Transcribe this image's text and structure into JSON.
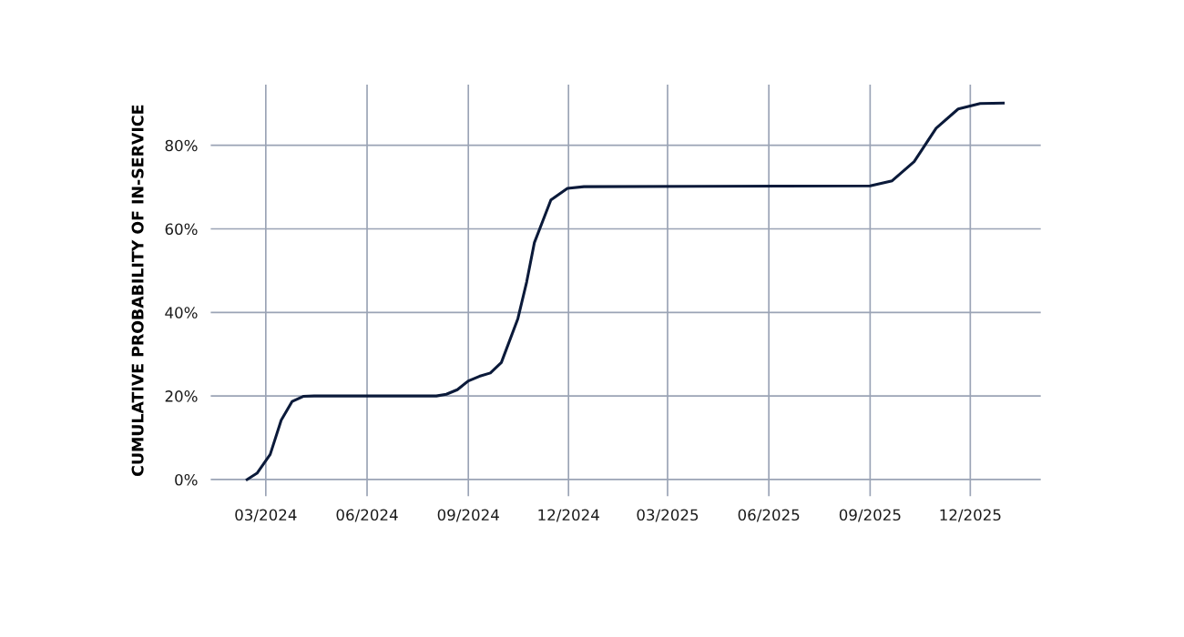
{
  "chart_data": {
    "type": "line",
    "ylabel": "CUMULATIVE PROBABILITY OF IN-SERVICE",
    "x": [
      "2024-02-13",
      "2024-02-22",
      "2024-03-05",
      "2024-03-15",
      "2024-03-25",
      "2024-04-04",
      "2024-04-14",
      "2024-08-03",
      "2024-08-12",
      "2024-08-22",
      "2024-09-01",
      "2024-09-11",
      "2024-09-21",
      "2024-10-01",
      "2024-10-16",
      "2024-10-24",
      "2024-10-31",
      "2024-11-15",
      "2024-11-30",
      "2024-12-15",
      "2025-09-01",
      "2025-09-21",
      "2025-10-11",
      "2025-10-31",
      "2025-11-20",
      "2025-12-10",
      "2025-12-31"
    ],
    "series": [
      {
        "color": "#0b1a3a",
        "values": [
          0,
          1.5,
          6,
          14.2,
          18.7,
          19.9,
          20,
          20,
          20.4,
          21.5,
          23.6,
          24.7,
          25.5,
          28,
          38.5,
          47.3,
          56.7,
          66.9,
          69.7,
          70.1,
          70.3,
          71.5,
          76.1,
          84.1,
          88.7,
          90,
          90.1
        ]
      }
    ],
    "xlim": [
      "2024-01-11",
      "2026-02-03"
    ],
    "xticks": [
      {
        "value": "2024-03-01",
        "label": "03/2024"
      },
      {
        "value": "2024-06-01",
        "label": "06/2024"
      },
      {
        "value": "2024-09-01",
        "label": "09/2024"
      },
      {
        "value": "2024-12-01",
        "label": "12/2024"
      },
      {
        "value": "2025-03-01",
        "label": "03/2025"
      },
      {
        "value": "2025-06-01",
        "label": "06/2025"
      },
      {
        "value": "2025-09-01",
        "label": "09/2025"
      },
      {
        "value": "2025-12-01",
        "label": "12/2025"
      }
    ],
    "ylim": [
      -4,
      94.5
    ],
    "yticks": [
      {
        "value": 0,
        "label": "0%"
      },
      {
        "value": 20,
        "label": "20%"
      },
      {
        "value": 40,
        "label": "40%"
      },
      {
        "value": 60,
        "label": "60%"
      },
      {
        "value": 80,
        "label": "80%"
      }
    ],
    "grid": true,
    "marker": "none",
    "line_style": "solid"
  }
}
